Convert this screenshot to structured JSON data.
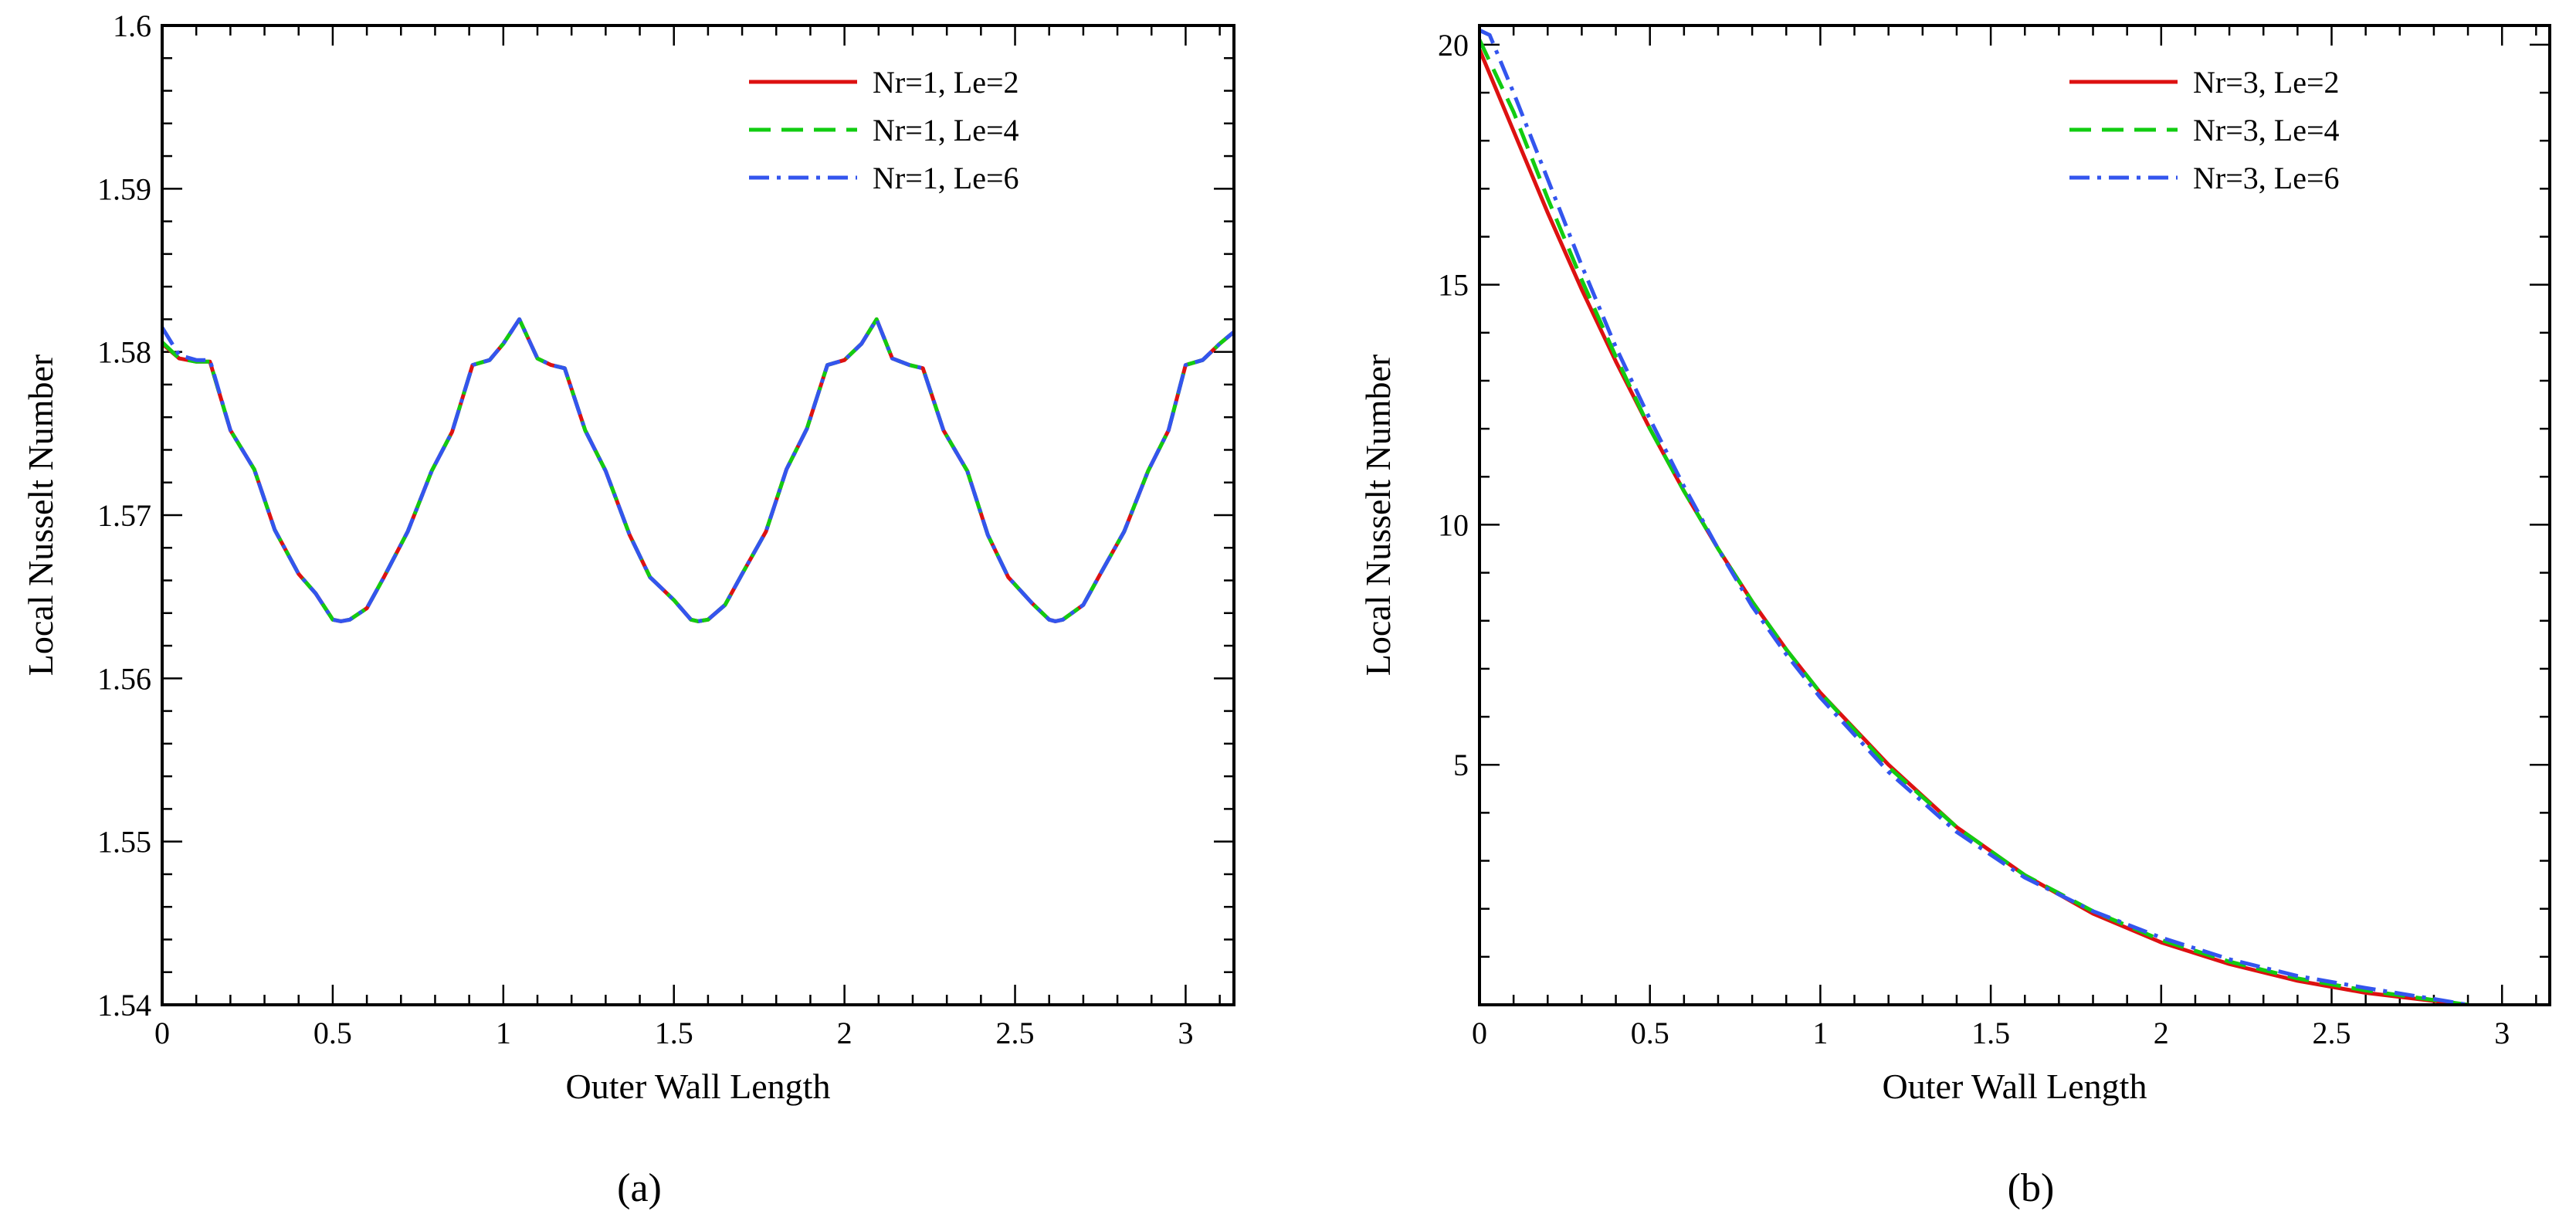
{
  "colors": {
    "red": "#dd1111",
    "green": "#11cc11",
    "blue": "#3355ee"
  },
  "chart_data": [
    {
      "type": "line",
      "caption": "(a)",
      "xlabel": "Outer Wall Length",
      "ylabel": "Local Nusselt Number",
      "xlim": [
        0,
        3.1416
      ],
      "ylim": [
        1.54,
        1.6
      ],
      "xticks": [
        0,
        0.5,
        1,
        1.5,
        2,
        2.5,
        3
      ],
      "xtick_labels": [
        "0",
        "0.5",
        "1",
        "1.5",
        "2",
        "2.5",
        "3"
      ],
      "yticks": [
        1.54,
        1.55,
        1.56,
        1.57,
        1.58,
        1.59,
        1.6
      ],
      "ytick_labels": [
        "1.54",
        "1.55",
        "1.56",
        "1.57",
        "1.58",
        "1.59",
        "1.6"
      ],
      "legend_position": "top-right",
      "series": [
        {
          "name": "Nr=1, Le=2",
          "color": "#dd1111",
          "style": "solid",
          "x": [
            0,
            0.05,
            0.1,
            0.14,
            0.2,
            0.27,
            0.33,
            0.4,
            0.45,
            0.5,
            0.524,
            0.55,
            0.6,
            0.65,
            0.72,
            0.79,
            0.85,
            0.91,
            0.96,
            1.0,
            1.047,
            1.1,
            1.14,
            1.18,
            1.24,
            1.3,
            1.37,
            1.43,
            1.5,
            1.55,
            1.571,
            1.6,
            1.65,
            1.7,
            1.77,
            1.83,
            1.89,
            1.95,
            2.0,
            2.05,
            2.094,
            2.14,
            2.19,
            2.23,
            2.29,
            2.36,
            2.42,
            2.48,
            2.55,
            2.6,
            2.618,
            2.64,
            2.7,
            2.75,
            2.82,
            2.89,
            2.95,
            3.0,
            3.05,
            3.1,
            3.14
          ],
          "y": [
            1.5805,
            1.5796,
            1.5794,
            1.5794,
            1.5752,
            1.5728,
            1.5691,
            1.5664,
            1.5652,
            1.5636,
            1.5635,
            1.5636,
            1.5643,
            1.5662,
            1.569,
            1.5727,
            1.5751,
            1.5792,
            1.5795,
            1.5805,
            1.582,
            1.5796,
            1.5792,
            1.579,
            1.5752,
            1.5727,
            1.5688,
            1.5662,
            1.5648,
            1.5636,
            1.5635,
            1.5636,
            1.5645,
            1.5664,
            1.569,
            1.5728,
            1.5753,
            1.5792,
            1.5795,
            1.5805,
            1.582,
            1.5796,
            1.5792,
            1.579,
            1.5752,
            1.5727,
            1.5688,
            1.5662,
            1.5646,
            1.5636,
            1.5635,
            1.5636,
            1.5645,
            1.5664,
            1.569,
            1.5727,
            1.5752,
            1.5792,
            1.5795,
            1.5805,
            1.5812
          ]
        },
        {
          "name": "Nr=1, Le=4",
          "color": "#11cc11",
          "style": "dashed",
          "x": [
            0,
            0.05,
            0.1,
            0.14,
            0.2,
            0.27,
            0.33,
            0.4,
            0.45,
            0.5,
            0.524,
            0.55,
            0.6,
            0.65,
            0.72,
            0.79,
            0.85,
            0.91,
            0.96,
            1.0,
            1.047,
            1.1,
            1.14,
            1.18,
            1.24,
            1.3,
            1.37,
            1.43,
            1.5,
            1.55,
            1.571,
            1.6,
            1.65,
            1.7,
            1.77,
            1.83,
            1.89,
            1.95,
            2.0,
            2.05,
            2.094,
            2.14,
            2.19,
            2.23,
            2.29,
            2.36,
            2.42,
            2.48,
            2.55,
            2.6,
            2.618,
            2.64,
            2.7,
            2.75,
            2.82,
            2.89,
            2.95,
            3.0,
            3.05,
            3.1,
            3.14
          ],
          "y": [
            1.5806,
            1.5796,
            1.5794,
            1.5794,
            1.5752,
            1.5728,
            1.5691,
            1.5664,
            1.5652,
            1.5636,
            1.5635,
            1.5636,
            1.5643,
            1.5662,
            1.569,
            1.5727,
            1.5751,
            1.5792,
            1.5795,
            1.5805,
            1.582,
            1.5796,
            1.5792,
            1.579,
            1.5752,
            1.5727,
            1.5688,
            1.5662,
            1.5648,
            1.5636,
            1.5635,
            1.5636,
            1.5645,
            1.5664,
            1.569,
            1.5728,
            1.5753,
            1.5792,
            1.5795,
            1.5805,
            1.582,
            1.5796,
            1.5792,
            1.579,
            1.5752,
            1.5727,
            1.5688,
            1.5662,
            1.5646,
            1.5636,
            1.5635,
            1.5636,
            1.5645,
            1.5664,
            1.569,
            1.5727,
            1.5752,
            1.5792,
            1.5795,
            1.5805,
            1.5812
          ]
        },
        {
          "name": "Nr=1, Le=6",
          "color": "#3355ee",
          "style": "dashdot",
          "x": [
            0,
            0.05,
            0.1,
            0.14,
            0.2,
            0.27,
            0.33,
            0.4,
            0.45,
            0.5,
            0.524,
            0.55,
            0.6,
            0.65,
            0.72,
            0.79,
            0.85,
            0.91,
            0.96,
            1.0,
            1.047,
            1.1,
            1.14,
            1.18,
            1.24,
            1.3,
            1.37,
            1.43,
            1.5,
            1.55,
            1.571,
            1.6,
            1.65,
            1.7,
            1.77,
            1.83,
            1.89,
            1.95,
            2.0,
            2.05,
            2.094,
            2.14,
            2.19,
            2.23,
            2.29,
            2.36,
            2.42,
            2.48,
            2.55,
            2.6,
            2.618,
            2.64,
            2.7,
            2.75,
            2.82,
            2.89,
            2.95,
            3.0,
            3.05,
            3.1,
            3.14
          ],
          "y": [
            1.5815,
            1.5798,
            1.5795,
            1.5795,
            1.5752,
            1.5728,
            1.5691,
            1.5664,
            1.5652,
            1.5636,
            1.5635,
            1.5636,
            1.5643,
            1.5662,
            1.569,
            1.5727,
            1.5751,
            1.5792,
            1.5795,
            1.5805,
            1.582,
            1.5796,
            1.5792,
            1.579,
            1.5752,
            1.5727,
            1.5688,
            1.5662,
            1.5648,
            1.5636,
            1.5635,
            1.5636,
            1.5645,
            1.5664,
            1.569,
            1.5728,
            1.5753,
            1.5792,
            1.5795,
            1.5805,
            1.582,
            1.5796,
            1.5792,
            1.579,
            1.5752,
            1.5727,
            1.5688,
            1.5662,
            1.5646,
            1.5636,
            1.5635,
            1.5636,
            1.5645,
            1.5664,
            1.569,
            1.5727,
            1.5752,
            1.5792,
            1.5795,
            1.5805,
            1.5812
          ]
        }
      ]
    },
    {
      "type": "line",
      "caption": "(b)",
      "xlabel": "Outer Wall Length",
      "ylabel": "Local Nusselt Number",
      "xlim": [
        0,
        3.14
      ],
      "ylim": [
        0,
        20.4
      ],
      "xticks": [
        0,
        0.5,
        1,
        1.5,
        2,
        2.5,
        3
      ],
      "xtick_labels": [
        "0",
        "0.5",
        "1",
        "1.5",
        "2",
        "2.5",
        "3"
      ],
      "yticks": [
        5,
        10,
        15,
        20
      ],
      "ytick_labels": [
        "5",
        "10",
        "15",
        "20"
      ],
      "legend_position": "top-right",
      "series": [
        {
          "name": "Nr=3, Le=2",
          "color": "#dd1111",
          "style": "solid",
          "x": [
            0,
            0.1,
            0.2,
            0.3,
            0.4,
            0.5,
            0.6,
            0.7,
            0.8,
            0.9,
            1.0,
            1.2,
            1.4,
            1.6,
            1.8,
            2.0,
            2.2,
            2.4,
            2.6,
            2.8,
            2.9
          ],
          "y": [
            19.9,
            18.2,
            16.5,
            14.9,
            13.4,
            12.0,
            10.7,
            9.5,
            8.4,
            7.4,
            6.5,
            5.0,
            3.7,
            2.7,
            1.9,
            1.3,
            0.85,
            0.5,
            0.25,
            0.08,
            0.0
          ]
        },
        {
          "name": "Nr=3, Le=4",
          "color": "#11cc11",
          "style": "dashed",
          "x": [
            0,
            0.1,
            0.2,
            0.3,
            0.4,
            0.5,
            0.6,
            0.7,
            0.8,
            0.9,
            1.0,
            1.2,
            1.4,
            1.6,
            1.8,
            2.0,
            2.2,
            2.4,
            2.6,
            2.8,
            2.9
          ],
          "y": [
            20.1,
            18.6,
            16.8,
            15.1,
            13.5,
            12.0,
            10.7,
            9.5,
            8.4,
            7.4,
            6.5,
            4.95,
            3.7,
            2.7,
            1.95,
            1.35,
            0.9,
            0.55,
            0.3,
            0.1,
            0.0
          ]
        },
        {
          "name": "Nr=3, Le=6",
          "color": "#3355ee",
          "style": "dashdot",
          "x": [
            0,
            0.03,
            0.1,
            0.2,
            0.3,
            0.4,
            0.5,
            0.6,
            0.7,
            0.8,
            0.9,
            1.0,
            1.2,
            1.4,
            1.6,
            1.8,
            2.0,
            2.2,
            2.4,
            2.6,
            2.8,
            2.9
          ],
          "y": [
            20.3,
            20.2,
            19.0,
            17.2,
            15.4,
            13.7,
            12.2,
            10.8,
            9.5,
            8.3,
            7.3,
            6.4,
            4.85,
            3.6,
            2.65,
            1.95,
            1.4,
            0.95,
            0.6,
            0.35,
            0.12,
            0.0
          ]
        }
      ]
    }
  ]
}
